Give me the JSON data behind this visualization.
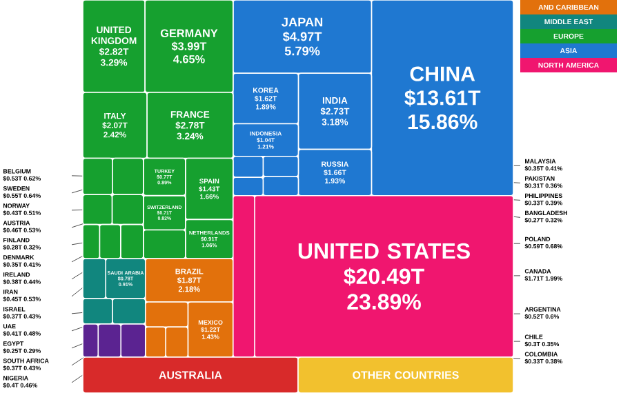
{
  "chart_data": {
    "type": "other",
    "categories": [
      "CHINA",
      "JAPAN",
      "INDIA",
      "KOREA",
      "RUSSIA",
      "INDONESIA",
      "MALAYSIA",
      "PHILIPPINES",
      "PAKISTAN",
      "BANGLADESH",
      "SAUDI ARABIA",
      "IRAN",
      "UAE",
      "ISRAEL",
      "UNITED KINGDOM",
      "GERMANY",
      "FRANCE",
      "ITALY",
      "SPAIN",
      "NETHERLANDS",
      "SWITZERLAND",
      "TURKEY",
      "POLAND",
      "SWEDEN",
      "BELGIUM",
      "AUSTRIA",
      "NORWAY",
      "IRELAND",
      "DENMARK",
      "FINLAND",
      "BRAZIL",
      "MEXICO",
      "ARGENTINA",
      "COLOMBIA",
      "CHILE",
      "UNITED STATES",
      "CANADA",
      "NIGERIA",
      "SOUTH AFRICA",
      "EGYPT",
      "AUSTRALIA",
      "OTHER COUNTRIES"
    ],
    "series": [
      {
        "name": "AND CARIBBEAN",
        "color": "#e2710c",
        "values": [
          null,
          null,
          null,
          null,
          null,
          null,
          null,
          null,
          null,
          null,
          null,
          null,
          null,
          null,
          null,
          null,
          null,
          null,
          null,
          null,
          null,
          null,
          null,
          null,
          null,
          null,
          null,
          null,
          null,
          null,
          1.87,
          1.22,
          0.52,
          0.33,
          0.3,
          null,
          null,
          null,
          null,
          null,
          null,
          null
        ],
        "value_labels": [
          null,
          null,
          null,
          null,
          null,
          null,
          null,
          null,
          null,
          null,
          null,
          null,
          null,
          null,
          null,
          null,
          null,
          null,
          null,
          null,
          null,
          null,
          null,
          null,
          null,
          null,
          null,
          null,
          null,
          null,
          "$1.87T",
          "$1.22T",
          "$0.52T",
          "$0.33T",
          "$0.3T",
          null,
          null,
          null,
          null,
          null,
          null,
          null
        ]
      },
      {
        "name": "MIDDLE EAST",
        "color": "#11867e",
        "values": [
          null,
          null,
          null,
          null,
          null,
          null,
          null,
          null,
          null,
          null,
          0.78,
          0.45,
          0.41,
          0.37,
          null,
          null,
          null,
          null,
          null,
          null,
          null,
          null,
          null,
          null,
          null,
          null,
          null,
          null,
          null,
          null,
          null,
          null,
          null,
          null,
          null,
          null,
          null,
          null,
          null,
          null,
          null,
          null
        ],
        "value_labels": [
          null,
          null,
          null,
          null,
          null,
          null,
          null,
          null,
          null,
          null,
          "$0.78T",
          "$0.45T",
          "$0.41T",
          "$0.37T",
          null,
          null,
          null,
          null,
          null,
          null,
          null,
          null,
          null,
          null,
          null,
          null,
          null,
          null,
          null,
          null,
          null,
          null,
          null,
          null,
          null,
          null,
          null,
          null,
          null,
          null,
          null,
          null
        ]
      },
      {
        "name": "EUROPE",
        "color": "#16a02f",
        "values": [
          null,
          null,
          null,
          null,
          null,
          null,
          null,
          null,
          null,
          null,
          null,
          null,
          null,
          null,
          2.82,
          3.99,
          2.78,
          2.07,
          1.43,
          0.91,
          0.71,
          0.77,
          0.59,
          0.55,
          0.53,
          0.46,
          0.43,
          0.38,
          0.35,
          0.28,
          null,
          null,
          null,
          null,
          null,
          null,
          null,
          null,
          null,
          null,
          null,
          null
        ],
        "value_labels": [
          null,
          null,
          null,
          null,
          null,
          null,
          null,
          null,
          null,
          null,
          null,
          null,
          null,
          null,
          "$2.82T",
          "$3.99T",
          "$2.78T",
          "$2.07T",
          "$1.43T",
          "$0.91T",
          "$0.71T",
          "$0.77T",
          "$0.59T",
          "$0.55T",
          "$0.53T",
          "$0.46T",
          "$0.43T",
          "$0.38T",
          "$0.35T",
          "$0.28T",
          null,
          null,
          null,
          null,
          null,
          null,
          null,
          null,
          null,
          null,
          null,
          null
        ]
      },
      {
        "name": "ASIA",
        "color": "#1f78d1",
        "values": [
          13.61,
          4.97,
          2.73,
          1.62,
          1.66,
          1.04,
          0.35,
          0.33,
          0.31,
          0.27,
          null,
          null,
          null,
          null,
          null,
          null,
          null,
          null,
          null,
          null,
          null,
          null,
          null,
          null,
          null,
          null,
          null,
          null,
          null,
          null,
          null,
          null,
          null,
          null,
          null,
          null,
          null,
          null,
          null,
          null,
          null,
          null
        ],
        "value_labels": [
          "$13.61T",
          "$4.97T",
          "$2.73T",
          "$1.62T",
          "$1.66T",
          "$1.04T",
          "$0.35T",
          "$0.33T",
          "$0.31T",
          "$0.27T",
          null,
          null,
          null,
          null,
          null,
          null,
          null,
          null,
          null,
          null,
          null,
          null,
          null,
          null,
          null,
          null,
          null,
          null,
          null,
          null,
          null,
          null,
          null,
          null,
          null,
          null,
          null,
          null,
          null,
          null,
          null,
          null
        ]
      },
      {
        "name": "NORTH AMERICA",
        "color": "#f0166f",
        "values": [
          null,
          null,
          null,
          null,
          null,
          null,
          null,
          null,
          null,
          null,
          null,
          null,
          null,
          null,
          null,
          null,
          null,
          null,
          null,
          null,
          null,
          null,
          null,
          null,
          null,
          null,
          null,
          null,
          null,
          null,
          null,
          null,
          null,
          null,
          null,
          20.49,
          1.71,
          null,
          null,
          null,
          null,
          null
        ],
        "value_labels": [
          null,
          null,
          null,
          null,
          null,
          null,
          null,
          null,
          null,
          null,
          null,
          null,
          null,
          null,
          null,
          null,
          null,
          null,
          null,
          null,
          null,
          null,
          null,
          null,
          null,
          null,
          null,
          null,
          null,
          null,
          null,
          null,
          null,
          null,
          null,
          "$20.49T",
          "$1.71T",
          null,
          null,
          null,
          null,
          null
        ]
      },
      {
        "color": "#5b2391",
        "values": [
          null,
          null,
          null,
          null,
          null,
          null,
          null,
          null,
          null,
          null,
          null,
          null,
          null,
          null,
          null,
          null,
          null,
          null,
          null,
          null,
          null,
          null,
          null,
          null,
          null,
          null,
          null,
          null,
          null,
          null,
          null,
          null,
          null,
          null,
          null,
          null,
          null,
          0.4,
          0.37,
          0.25,
          null,
          null
        ],
        "value_labels": [
          null,
          null,
          null,
          null,
          null,
          null,
          null,
          null,
          null,
          null,
          null,
          null,
          null,
          null,
          null,
          null,
          null,
          null,
          null,
          null,
          null,
          null,
          null,
          null,
          null,
          null,
          null,
          null,
          null,
          null,
          null,
          null,
          null,
          null,
          null,
          null,
          null,
          "$0.4T",
          "$0.37T",
          "$0.25T",
          null,
          null
        ]
      },
      {
        "color": "#d82a2a",
        "values": [
          null,
          null,
          null,
          null,
          null,
          null,
          null,
          null,
          null,
          null,
          null,
          null,
          null,
          null,
          null,
          null,
          null,
          null,
          null,
          null,
          null,
          null,
          null,
          null,
          null,
          null,
          null,
          null,
          null,
          null,
          null,
          null,
          null,
          null,
          null,
          null,
          null,
          null,
          null,
          null,
          null,
          null
        ]
      },
      {
        "color": "#f2c12e",
        "values": [
          null,
          null,
          null,
          null,
          null,
          null,
          null,
          null,
          null,
          null,
          null,
          null,
          null,
          null,
          null,
          null,
          null,
          null,
          null,
          null,
          null,
          null,
          null,
          null,
          null,
          null,
          null,
          null,
          null,
          null,
          null,
          null,
          null,
          null,
          null,
          null,
          null,
          null,
          null,
          null,
          null,
          null
        ]
      }
    ],
    "annotations": [
      "15.86%",
      "5.79%",
      "3.18%",
      "1.89%",
      "1.93%",
      "1.21%",
      "0.41%",
      "0.39%",
      "0.36%",
      "0.32%",
      "0.91%",
      "0.53%",
      "0.48%",
      "0.43%",
      "3.29%",
      "4.65%",
      "3.24%",
      "2.42%",
      "1.66%",
      "1.06%",
      "0.82%",
      "0.89%",
      "0.68%",
      "0.64%",
      "0.62%",
      "0.53%",
      "0.51%",
      "0.44%",
      "0.41%",
      "0.32%",
      "2.18%",
      "1.43%",
      "0.6%",
      "0.38%",
      "0.35%",
      "23.89%",
      "1.99%",
      "0.46%",
      "0.43%",
      "0.29%"
    ],
    "legend": "top right"
  }
}
